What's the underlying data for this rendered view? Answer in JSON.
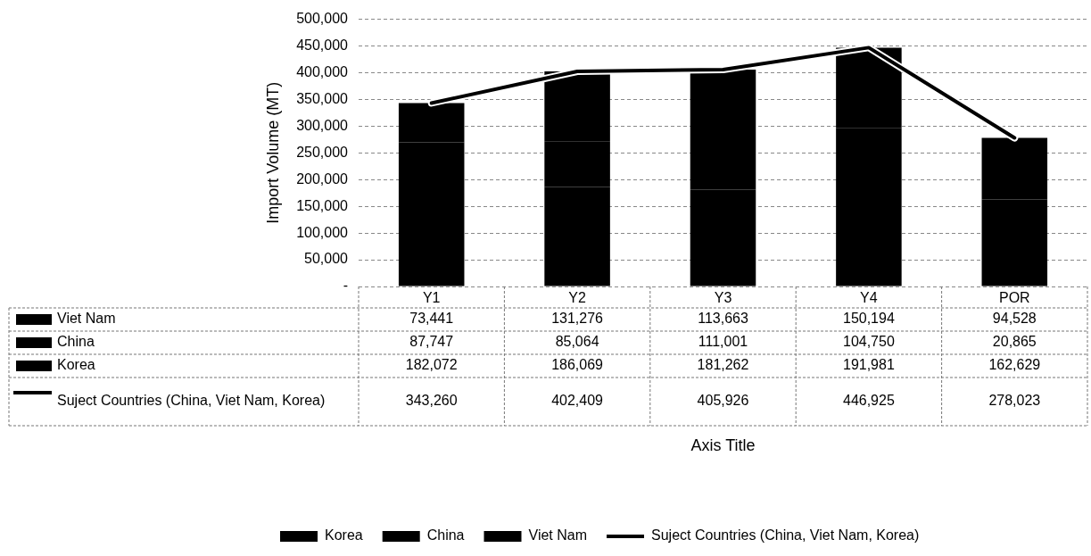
{
  "chart_data": {
    "type": "bar",
    "stacked": true,
    "annotations": [
      "Axis Title"
    ],
    "ylabel": "Import Volume (MT)",
    "categories": [
      "Y1",
      "Y2",
      "Y3",
      "Y4",
      "POR"
    ],
    "series": [
      {
        "name": "Korea",
        "color": "#000000",
        "values": [
          182072,
          186069,
          181262,
          191981,
          162629
        ],
        "value_labels": [
          "182,072",
          "186,069",
          "181,262",
          "191,981",
          "162,629"
        ]
      },
      {
        "name": "China",
        "color": "#000000",
        "values": [
          87747,
          85064,
          111001,
          104750,
          20865
        ],
        "value_labels": [
          "87,747",
          "85,064",
          "111,001",
          "104,750",
          "20,865"
        ]
      },
      {
        "name": "Viet Nam",
        "color": "#000000",
        "values": [
          73441,
          131276,
          113663,
          150194,
          94528
        ],
        "value_labels": [
          "73,441",
          "131,276",
          "113,663",
          "150,194",
          "94,528"
        ]
      },
      {
        "name": "Suject Countries (China, Viet Nam, Korea)",
        "type": "line",
        "color": "#000000",
        "values": [
          343260,
          402409,
          405926,
          446925,
          278023
        ],
        "value_labels": [
          "343,260",
          "402,409",
          "405,926",
          "446,925",
          "278,023"
        ]
      }
    ],
    "ylim": [
      0,
      500000
    ],
    "yticks": [
      {
        "value": 0,
        "label": "-"
      },
      {
        "value": 50000,
        "label": "50,000"
      },
      {
        "value": 100000,
        "label": "100,000"
      },
      {
        "value": 150000,
        "label": "150,000"
      },
      {
        "value": 200000,
        "label": "200,000"
      },
      {
        "value": 250000,
        "label": "250,000"
      },
      {
        "value": 300000,
        "label": "300,000"
      },
      {
        "value": 350000,
        "label": "350,000"
      },
      {
        "value": 400000,
        "label": "400,000"
      },
      {
        "value": 450000,
        "label": "450,000"
      },
      {
        "value": 500000,
        "label": "500,000"
      }
    ],
    "grid": "y",
    "legend": "bottom",
    "marker": "none"
  }
}
